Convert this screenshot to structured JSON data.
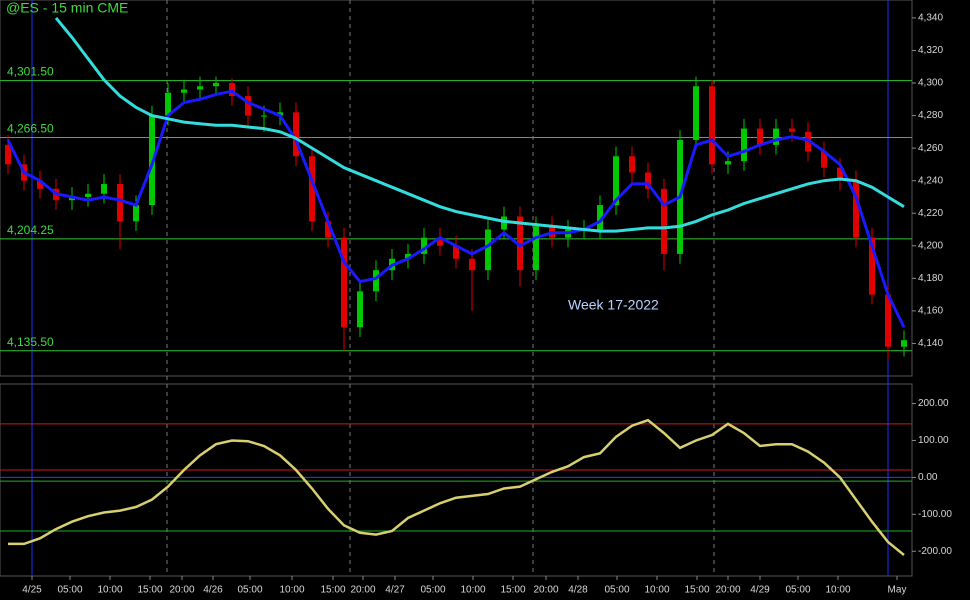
{
  "chart_data": [
    {
      "type": "candlestick",
      "title": "@ES - 15 min  CME",
      "annotation": "Week 17-2022",
      "up_color": "#00c800",
      "down_color": "#e00000",
      "x": [
        4,
        12,
        20,
        28,
        36,
        44,
        52,
        60,
        68,
        76,
        84,
        92,
        100,
        108,
        116,
        124,
        132,
        140,
        148,
        156,
        164,
        172,
        180,
        188,
        196,
        204,
        212,
        220,
        228,
        236,
        244,
        252,
        260,
        268,
        276,
        284,
        292,
        300,
        308,
        316,
        324,
        332,
        340,
        348,
        356,
        364,
        372,
        380,
        388,
        396,
        404,
        412,
        420,
        428,
        436,
        444,
        452
      ],
      "open": [
        4262,
        4250,
        4240,
        4235,
        4228,
        4230,
        4232,
        4238,
        4215,
        4225,
        4280,
        4294,
        4296,
        4298,
        4300,
        4292,
        4280,
        4280,
        4282,
        4255,
        4215,
        4205,
        4150,
        4172,
        4185,
        4192,
        4195,
        4205,
        4200,
        4192,
        4185,
        4210,
        4218,
        4185,
        4212,
        4205,
        4210,
        4210,
        4225,
        4255,
        4245,
        4235,
        4195,
        4265,
        4298,
        4250,
        4252,
        4272,
        4262,
        4272,
        4270,
        4258,
        4248,
        4240,
        4205,
        4170,
        4138
      ],
      "high": [
        4268,
        4256,
        4246,
        4241,
        4236,
        4238,
        4244,
        4244,
        4231,
        4286,
        4300,
        4302,
        4304,
        4304,
        4303,
        4298,
        4286,
        4288,
        4288,
        4261,
        4221,
        4211,
        4178,
        4191,
        4198,
        4201,
        4211,
        4211,
        4206,
        4198,
        4216,
        4224,
        4224,
        4218,
        4218,
        4216,
        4216,
        4231,
        4261,
        4261,
        4251,
        4241,
        4271,
        4304,
        4302,
        4258,
        4278,
        4278,
        4278,
        4278,
        4276,
        4264,
        4254,
        4246,
        4211,
        4176,
        4148
      ],
      "low": [
        4244,
        4234,
        4229,
        4222,
        4222,
        4224,
        4226,
        4198,
        4209,
        4219,
        4274,
        4288,
        4290,
        4292,
        4286,
        4274,
        4270,
        4274,
        4249,
        4209,
        4199,
        4135,
        4144,
        4166,
        4179,
        4186,
        4189,
        4194,
        4186,
        4160,
        4179,
        4204,
        4175,
        4179,
        4199,
        4199,
        4204,
        4204,
        4219,
        4239,
        4229,
        4185,
        4189,
        4259,
        4244,
        4244,
        4246,
        4256,
        4256,
        4264,
        4252,
        4242,
        4234,
        4199,
        4164,
        4130,
        4132
      ],
      "close": [
        4250,
        4240,
        4235,
        4228,
        4230,
        4232,
        4238,
        4215,
        4225,
        4280,
        4294,
        4296,
        4298,
        4300,
        4292,
        4280,
        4280,
        4282,
        4255,
        4215,
        4205,
        4150,
        4172,
        4185,
        4192,
        4195,
        4205,
        4200,
        4192,
        4185,
        4210,
        4218,
        4185,
        4212,
        4205,
        4210,
        4210,
        4225,
        4255,
        4245,
        4235,
        4195,
        4265,
        4298,
        4250,
        4252,
        4272,
        4262,
        4272,
        4270,
        4258,
        4248,
        4240,
        4205,
        4170,
        4138,
        4142
      ],
      "series": [
        {
          "color": "#1a1aff",
          "values": [
            4265,
            4245,
            4240,
            4232,
            4230,
            4228,
            4230,
            4228,
            4225,
            4250,
            4280,
            4288,
            4290,
            4293,
            4295,
            4288,
            4284,
            4280,
            4265,
            4240,
            4215,
            4190,
            4178,
            4180,
            4188,
            4192,
            4198,
            4205,
            4200,
            4195,
            4200,
            4208,
            4200,
            4205,
            4208,
            4208,
            4210,
            4215,
            4228,
            4238,
            4238,
            4225,
            4230,
            4262,
            4265,
            4255,
            4258,
            4262,
            4265,
            4267,
            4265,
            4258,
            4250,
            4230,
            4200,
            4170,
            4150
          ]
        },
        {
          "color": "#33dddd",
          "values": [
            null,
            null,
            null,
            4340,
            4328,
            4315,
            4302,
            4292,
            4285,
            4280,
            4278,
            4276,
            4275,
            4274,
            4274,
            4273,
            4272,
            4270,
            4266,
            4260,
            4254,
            4248,
            4244,
            4240,
            4236,
            4232,
            4228,
            4224,
            4221,
            4219,
            4217,
            4215,
            4214,
            4213,
            4212,
            4211,
            4210,
            4209,
            4209,
            4210,
            4211,
            4211,
            4212,
            4215,
            4219,
            4222,
            4226,
            4229,
            4232,
            4235,
            4238,
            4240,
            4241,
            4240,
            4236,
            4230,
            4224
          ]
        }
      ],
      "levels": [
        {
          "value": 4301.5,
          "label": "4,301.50"
        },
        {
          "value": 4266.5,
          "label": "4,266.50"
        },
        {
          "value": 4204.25,
          "label": "4,204.25"
        },
        {
          "value": 4135.5,
          "label": "4,135.50"
        }
      ],
      "level_color": "#2fc42f",
      "xlim": [
        0,
        456
      ],
      "ylim": [
        4120,
        4351
      ],
      "yticks": [
        {
          "value": 4140,
          "label": "4,140"
        },
        {
          "value": 4160,
          "label": "4,160"
        },
        {
          "value": 4180,
          "label": "4,180"
        },
        {
          "value": 4200,
          "label": "4,200"
        },
        {
          "value": 4220,
          "label": "4,220"
        },
        {
          "value": 4240,
          "label": "4,240"
        },
        {
          "value": 4260,
          "label": "4,260"
        },
        {
          "value": 4280,
          "label": "4,280"
        },
        {
          "value": 4300,
          "label": "4,300"
        },
        {
          "value": 4320,
          "label": "4,320"
        },
        {
          "value": 4340,
          "label": "4,340"
        }
      ]
    },
    {
      "type": "line",
      "color": "#d8d070",
      "x": [
        4,
        12,
        20,
        28,
        36,
        44,
        52,
        60,
        68,
        76,
        84,
        92,
        100,
        108,
        116,
        124,
        132,
        140,
        148,
        156,
        164,
        172,
        180,
        188,
        196,
        204,
        212,
        220,
        228,
        236,
        244,
        252,
        260,
        268,
        276,
        284,
        292,
        300,
        308,
        316,
        324,
        332,
        340,
        348,
        356,
        364,
        372,
        380,
        388,
        396,
        404,
        412,
        420,
        428,
        436,
        444,
        452
      ],
      "values": [
        -180,
        -180,
        -165,
        -140,
        -120,
        -105,
        -95,
        -90,
        -80,
        -60,
        -25,
        20,
        60,
        90,
        100,
        98,
        85,
        60,
        20,
        -30,
        -85,
        -130,
        -150,
        -155,
        -145,
        -110,
        -90,
        -70,
        -55,
        -50,
        -45,
        -30,
        -25,
        -5,
        15,
        30,
        55,
        65,
        110,
        140,
        155,
        120,
        80,
        100,
        115,
        145,
        120,
        85,
        90,
        90,
        70,
        40,
        0,
        -60,
        -120,
        -175,
        -210
      ],
      "hlines": [
        {
          "value": 145,
          "color": "#d01818"
        },
        {
          "value": 20,
          "color": "#d01818"
        },
        {
          "value": 0,
          "color": "#2040ff"
        },
        {
          "value": -10,
          "color": "#20b020"
        },
        {
          "value": -145,
          "color": "#20b020"
        }
      ],
      "xlim": [
        0,
        456
      ],
      "ylim": [
        -267,
        253
      ],
      "yticks": [
        {
          "value": 200,
          "label": "200.00"
        },
        {
          "value": 100,
          "label": "100.00"
        },
        {
          "value": 0,
          "label": "0.00"
        },
        {
          "value": -100,
          "label": "-100.00"
        },
        {
          "value": -200,
          "label": "-200.00"
        }
      ],
      "xticks": [
        {
          "value": 16,
          "label": "4/25"
        },
        {
          "value": 35,
          "label": "05:00"
        },
        {
          "value": 55,
          "label": "10:00"
        },
        {
          "value": 75,
          "label": "15:00"
        },
        {
          "value": 91,
          "label": "20:00"
        },
        {
          "value": 106.5,
          "label": "4/26"
        },
        {
          "value": 125,
          "label": "05:00"
        },
        {
          "value": 146,
          "label": "10:00"
        },
        {
          "value": 166.5,
          "label": "15:00"
        },
        {
          "value": 181.5,
          "label": "20:00"
        },
        {
          "value": 197.5,
          "label": "4/27"
        },
        {
          "value": 216.5,
          "label": "05:00"
        },
        {
          "value": 236.5,
          "label": "10:00"
        },
        {
          "value": 256.5,
          "label": "15:00"
        },
        {
          "value": 273,
          "label": "20:00"
        },
        {
          "value": 289,
          "label": "4/28"
        },
        {
          "value": 308.5,
          "label": "05:00"
        },
        {
          "value": 328.5,
          "label": "10:00"
        },
        {
          "value": 348.5,
          "label": "15:00"
        },
        {
          "value": 364,
          "label": "20:00"
        },
        {
          "value": 380,
          "label": "4/29"
        },
        {
          "value": 399,
          "label": "05:00"
        },
        {
          "value": 419,
          "label": "10:00"
        },
        {
          "value": 448.5,
          "label": "May"
        }
      ]
    }
  ]
}
